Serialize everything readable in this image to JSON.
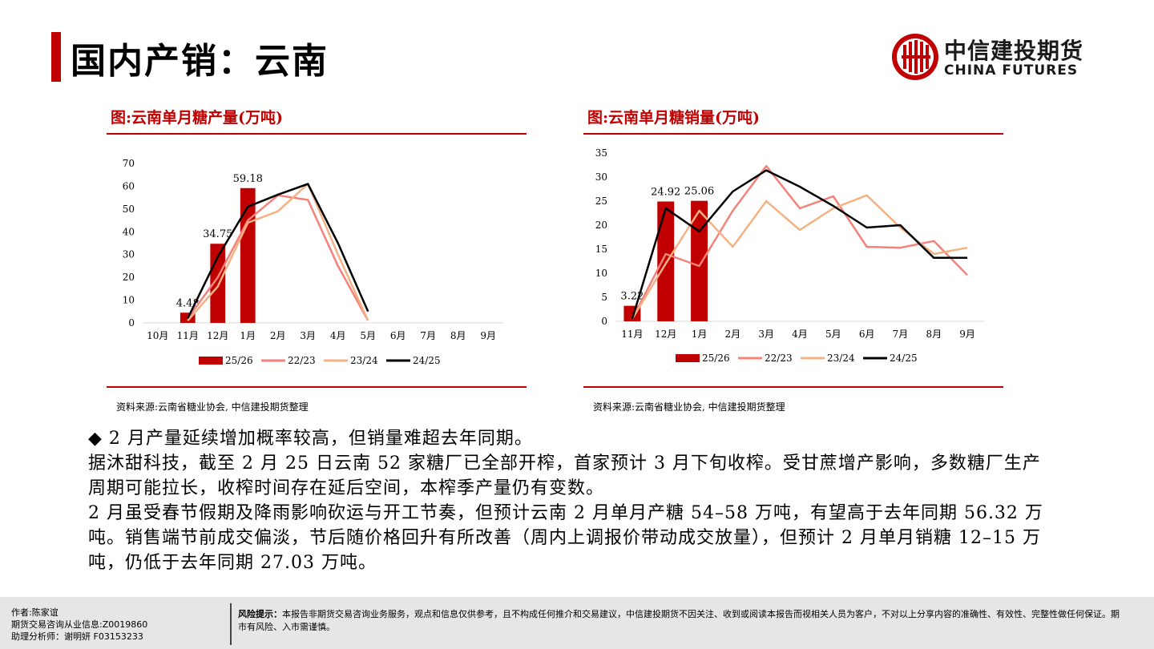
{
  "header": {
    "title": "国内产销：云南"
  },
  "logo": {
    "cn": "中信建投期货",
    "en": "CHINA FUTURES"
  },
  "charts_text": {
    "left_title": "图:云南单月糖产量(万吨)",
    "right_title": "图:云南单月糖销量(万吨)",
    "left_source": "资料来源:云南省糖业协会, 中信建投期货整理",
    "right_source": "资料来源:云南省糖业协会, 中信建投期货整理"
  },
  "chart_data": [
    {
      "type": "bar",
      "title": "图:云南单月糖产量(万吨)",
      "categories": [
        "10月",
        "11月",
        "12月",
        "1月",
        "2月",
        "3月",
        "4月",
        "5月",
        "6月",
        "7月",
        "8月",
        "9月"
      ],
      "ylim": [
        0,
        70
      ],
      "yticks": [
        0,
        10,
        20,
        30,
        40,
        50,
        60,
        70
      ],
      "legend_position": "bottom",
      "grid": false,
      "series": [
        {
          "name": "25/26",
          "kind": "bar",
          "color": "#c00000",
          "values": [
            null,
            4.48,
            34.75,
            59.18,
            null,
            null,
            null,
            null,
            null,
            null,
            null,
            null
          ],
          "labels": [
            null,
            "4.48",
            "34.75",
            "59.18",
            null,
            null,
            null,
            null,
            null,
            null,
            null,
            null
          ]
        },
        {
          "name": "22/23",
          "kind": "line",
          "color": "#f4827a",
          "values": [
            null,
            2,
            20,
            45,
            56,
            54,
            25,
            1,
            null,
            null,
            null,
            null
          ]
        },
        {
          "name": "23/24",
          "kind": "line",
          "color": "#f4b183",
          "values": [
            null,
            1,
            16,
            44,
            49,
            61,
            30,
            1,
            null,
            null,
            null,
            null
          ]
        },
        {
          "name": "24/25",
          "kind": "line",
          "color": "#000000",
          "values": [
            null,
            2,
            29,
            51,
            56.3,
            61,
            35,
            5,
            null,
            null,
            null,
            null
          ]
        }
      ]
    },
    {
      "type": "bar",
      "title": "图:云南单月糖销量(万吨)",
      "categories": [
        "11月",
        "12月",
        "1月",
        "2月",
        "3月",
        "4月",
        "5月",
        "6月",
        "7月",
        "8月",
        "9月"
      ],
      "ylim": [
        0,
        35
      ],
      "yticks": [
        0,
        5,
        10,
        15,
        20,
        25,
        30,
        35
      ],
      "legend_position": "bottom",
      "grid": false,
      "series": [
        {
          "name": "25/26",
          "kind": "bar",
          "color": "#c00000",
          "values": [
            3.22,
            24.92,
            25.06,
            null,
            null,
            null,
            null,
            null,
            null,
            null,
            null
          ],
          "labels": [
            "3.22",
            "24.92",
            "25.06",
            null,
            null,
            null,
            null,
            null,
            null,
            null,
            null
          ]
        },
        {
          "name": "22/23",
          "kind": "line",
          "color": "#f4827a",
          "values": [
            0.5,
            14,
            11.5,
            23,
            32.3,
            23.5,
            26,
            15.5,
            15.3,
            16.7,
            9.6
          ]
        },
        {
          "name": "23/24",
          "kind": "line",
          "color": "#f4b183",
          "values": [
            0.5,
            12,
            23,
            15.5,
            25,
            19,
            23.5,
            26.2,
            19.5,
            14,
            15.3
          ]
        },
        {
          "name": "24/25",
          "kind": "line",
          "color": "#000000",
          "values": [
            0.5,
            23.5,
            18.7,
            27,
            31.4,
            28,
            24,
            19.5,
            20,
            13.2,
            13.2
          ]
        }
      ]
    }
  ],
  "bullets": {
    "b1_marker": "◆",
    "b1": " 2 月产量延续增加概率较高，但销量难超去年同期。",
    "p2": "据沐甜科技，截至 2 月 25 日云南 52 家糖厂已全部开榨，首家预计 3 月下旬收榨。受甘蔗增产影响，多数糖厂生产周期可能拉长，收榨时间存在延后空间，本榨季产量仍有变数。",
    "p3": "2 月虽受春节假期及降雨影响砍运与开工节奏，但预计云南 2 月单月产糖 54–58 万吨，有望高于去年同期 56.32 万吨。销售端节前成交偏淡，节后随价格回升有所改善（周内上调报价带动成交放量），但预计 2 月单月销糖 12–15 万吨，仍低于去年同期 27.03 万吨。"
  },
  "footer": {
    "author": "作者:陈家谊",
    "license": "期货交易咨询从业信息:Z0019860",
    "assistant": "助理分析师：谢明妍 F03153233",
    "risk_label": "风险提示：",
    "risk_text": "本报告非期货交易咨询业务服务，观点和信息仅供参考，且不构成任何推介和交易建议，中信建投期货不因关注、收到或阅读本报告而视相关人员为客户，不对以上分享内容的准确性、有效性、完整性做任何保证。期市有风险、入市需谨慎。"
  }
}
